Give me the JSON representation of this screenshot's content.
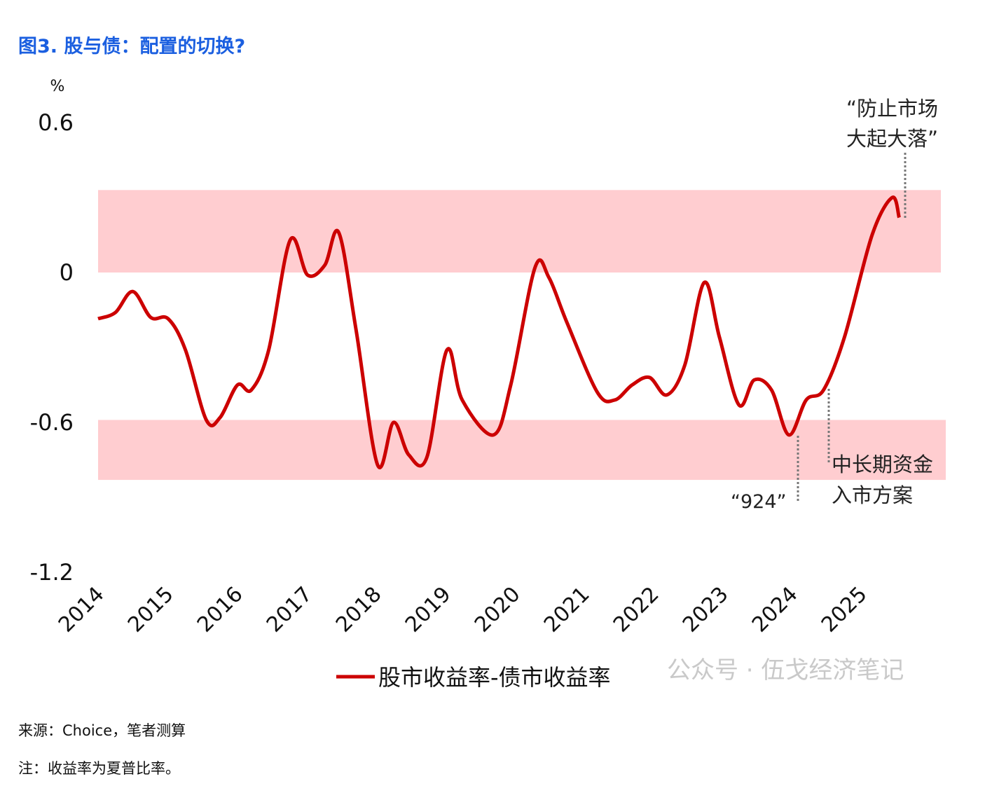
{
  "title": "图3. 股与债：配置的切换?",
  "source": "来源：Choice，笔者测算",
  "note": "注：收益率为夏普比率。",
  "watermark": "公众号 · 伍戈经济笔记",
  "colors": {
    "line": "#cc0000",
    "band": "#ffcdd0",
    "title": "#1b5fe0"
  },
  "chart_data": {
    "type": "line",
    "ylabel": "%",
    "ylim": [
      -1.2,
      0.6
    ],
    "yticks": [
      "0.6",
      "0",
      "-0.6",
      "-1.2"
    ],
    "yticks_values": [
      0.6,
      0,
      -0.6,
      -1.2
    ],
    "xticks": [
      "2014",
      "2015",
      "2016",
      "2017",
      "2018",
      "2019",
      "2020",
      "2021",
      "2022",
      "2023",
      "2024",
      "2025"
    ],
    "legend": "股市收益率-债市收益率",
    "bands": [
      {
        "from": 0,
        "to": 0.33
      },
      {
        "from": -0.59,
        "to": -0.83
      }
    ],
    "annotations": [
      {
        "text1": "“防止市场",
        "text2": "大起大落”",
        "x": 2025.55
      },
      {
        "text1": "中长期资金",
        "text2": "入市方案",
        "x": 2024.45
      },
      {
        "text1": "“924”",
        "text2": "",
        "x": 2024.0
      }
    ],
    "series": [
      {
        "name": "股市收益率-债市收益率",
        "x": [
          2014.0,
          2014.25,
          2014.5,
          2014.76,
          2015.01,
          2015.26,
          2015.56,
          2015.76,
          2016.01,
          2016.21,
          2016.46,
          2016.77,
          2017.02,
          2017.27,
          2017.47,
          2017.72,
          2018.03,
          2018.26,
          2018.48,
          2018.74,
          2019.03,
          2019.25,
          2019.7,
          2019.95,
          2020.3,
          2020.5,
          2020.76,
          2021.2,
          2021.45,
          2021.7,
          2021.95,
          2022.2,
          2022.46,
          2022.74,
          2022.96,
          2023.24,
          2023.46,
          2023.71,
          2023.96,
          2024.21,
          2024.46,
          2024.76,
          2025.16,
          2025.45,
          2025.55
        ],
        "y": [
          -0.185,
          -0.16,
          -0.076,
          -0.18,
          -0.185,
          -0.31,
          -0.59,
          -0.58,
          -0.45,
          -0.47,
          -0.31,
          0.13,
          -0.01,
          0.03,
          0.16,
          -0.23,
          -0.77,
          -0.6,
          -0.73,
          -0.74,
          -0.31,
          -0.51,
          -0.65,
          -0.45,
          0.02,
          -0.02,
          -0.2,
          -0.48,
          -0.51,
          -0.45,
          -0.42,
          -0.49,
          -0.37,
          -0.04,
          -0.26,
          -0.53,
          -0.43,
          -0.47,
          -0.65,
          -0.51,
          -0.47,
          -0.26,
          0.15,
          0.3,
          0.22
        ]
      }
    ]
  }
}
